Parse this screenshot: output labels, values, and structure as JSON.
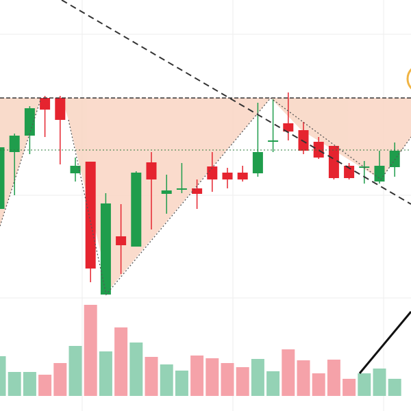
{
  "chart_data": {
    "type": "candlestick",
    "open": [
      295,
      378,
      402,
      457,
      457,
      347,
      364,
      170,
      255,
      240,
      363,
      317,
      323,
      325,
      357,
      348,
      348,
      347,
      393,
      420,
      410,
      393,
      387,
      358,
      355,
      335,
      356
    ],
    "high": [
      390,
      405,
      445,
      460,
      460,
      370,
      364,
      318,
      302,
      350,
      378,
      345,
      362,
      338,
      378,
      355,
      358,
      450,
      455,
      465,
      422,
      400,
      387,
      362,
      365,
      380,
      392
    ],
    "low": [
      295,
      315,
      375,
      400,
      360,
      335,
      188,
      170,
      200,
      240,
      265,
      288,
      318,
      295,
      320,
      325,
      335,
      342,
      378,
      395,
      375,
      368,
      338,
      338,
      332,
      332,
      342
    ],
    "close": [
      385,
      402,
      442,
      440,
      425,
      358,
      208,
      303,
      242,
      348,
      338,
      322,
      325,
      317,
      338,
      338,
      338,
      378,
      395,
      408,
      380,
      370,
      340,
      340,
      357,
      358,
      380
    ],
    "volume": [
      58,
      35,
      35,
      31,
      48,
      73,
      133,
      65,
      100,
      78,
      57,
      46,
      37,
      59,
      55,
      48,
      42,
      54,
      36,
      68,
      52,
      33,
      53,
      25,
      33,
      40,
      25
    ],
    "ylim": [
      0,
      600
    ],
    "volume_lim": [
      0,
      200
    ],
    "up_color": "#1f9d4c",
    "down_color": "#e5242f",
    "up_volume_color": "#94d2b5",
    "down_volume_color": "#f5a2a9"
  }
}
